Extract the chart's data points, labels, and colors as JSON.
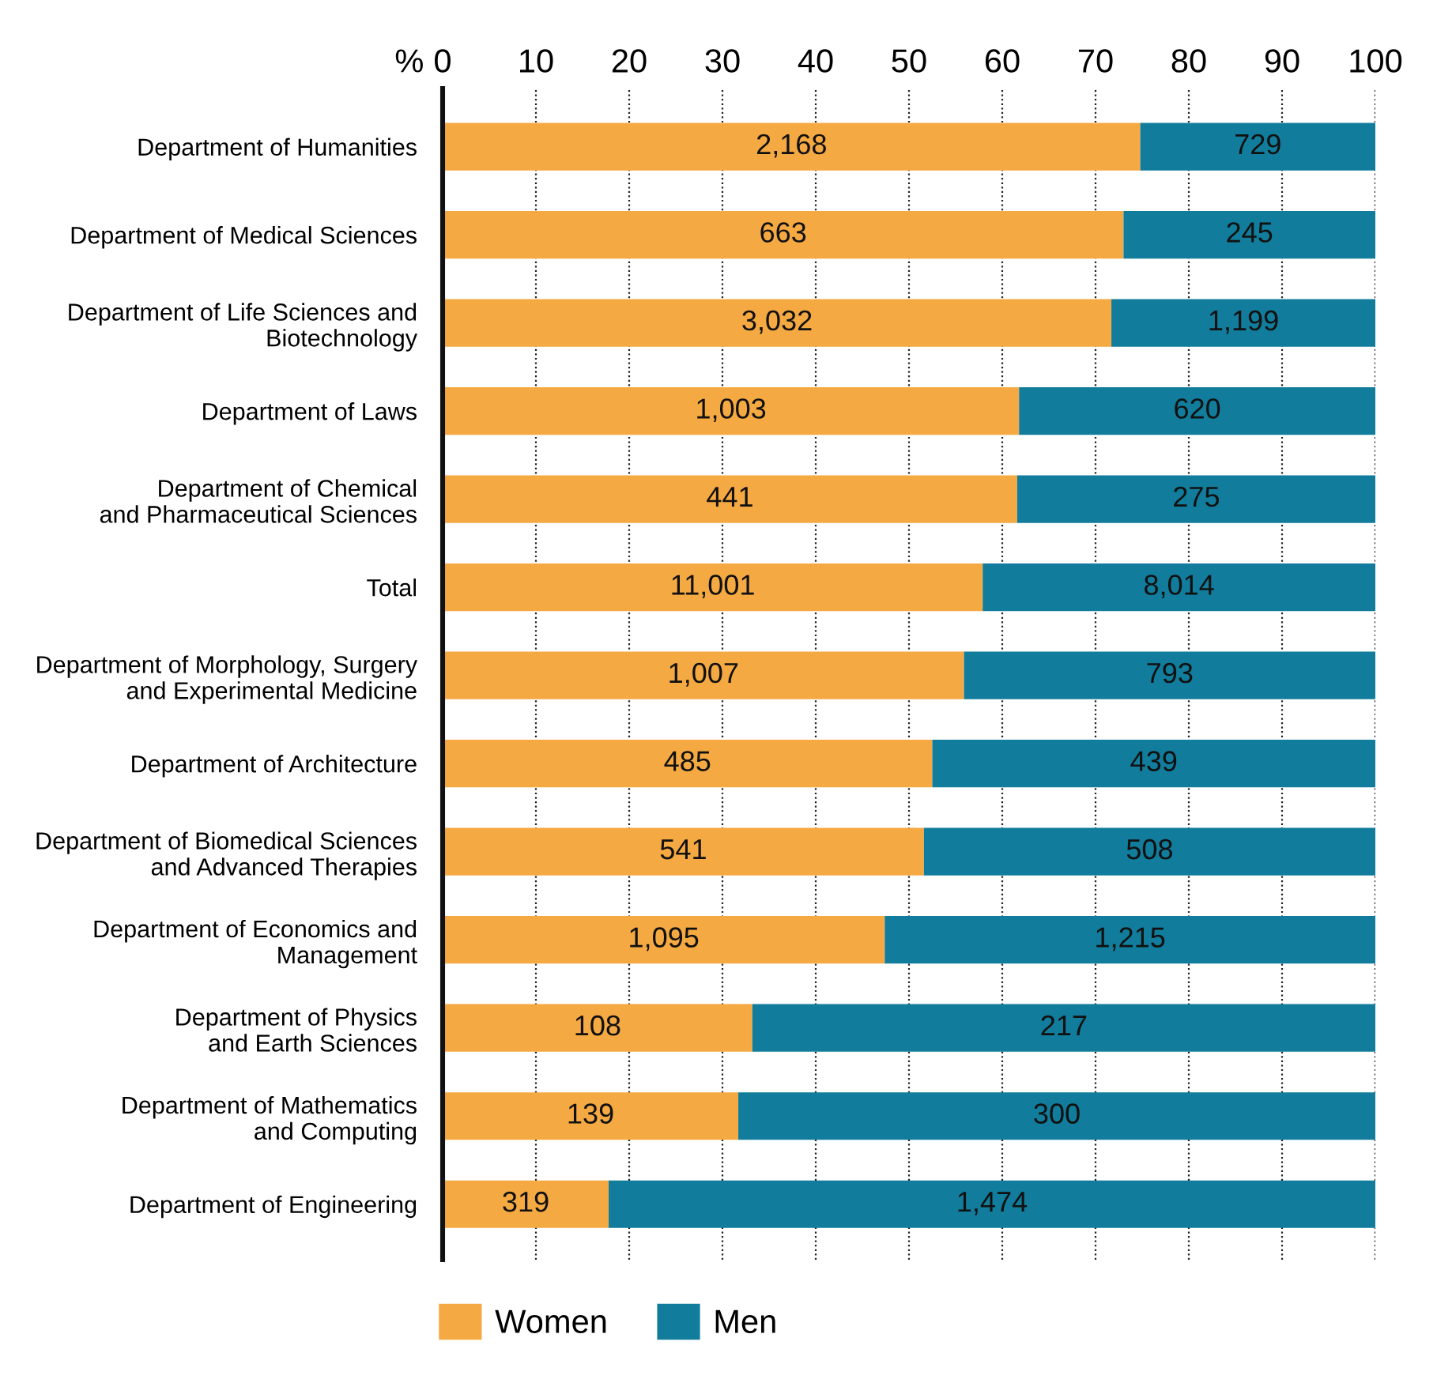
{
  "chart_data": {
    "type": "bar",
    "orientation": "horizontal",
    "stacked": true,
    "xlabel": "%",
    "categories": [
      "Department of Humanities",
      "Department of Medical Sciences",
      "Department of Life Sciences and\nBiotechnology",
      "Department of Laws",
      "Department of Chemical\nand Pharmaceutical Sciences",
      "Total",
      "Department of Morphology, Surgery\nand Experimental Medicine",
      "Department of Architecture",
      "Department of Biomedical Sciences\nand Advanced Therapies",
      "Department of Economics and\nManagement",
      "Department of Physics\nand Earth Sciences",
      "Department of Mathematics\nand Computing",
      "Department of Engineering"
    ],
    "series": [
      {
        "name": "Women",
        "color": "#f5a942",
        "values": [
          74.8,
          73.0,
          71.7,
          61.8,
          61.6,
          57.9,
          55.9,
          52.5,
          51.6,
          47.4,
          33.2,
          31.7,
          17.8
        ]
      },
      {
        "name": "Men",
        "color": "#117c9b",
        "values": [
          25.2,
          27.0,
          28.3,
          38.2,
          38.4,
          42.1,
          44.1,
          47.5,
          48.4,
          52.6,
          66.8,
          68.3,
          82.2
        ]
      }
    ],
    "annotations": [
      "2,168",
      "729",
      "663",
      "245",
      "3,032",
      "1,199",
      "1,003",
      "620",
      "441",
      "275",
      "11,001",
      "8,014",
      "1,007",
      "793",
      "485",
      "439",
      "541",
      "508",
      "1,095",
      "1,215",
      "108",
      "217",
      "139",
      "300",
      "319",
      "1,474"
    ],
    "xlim": [
      0,
      100
    ],
    "xticks": [
      0,
      10,
      20,
      30,
      40,
      50,
      60,
      70,
      80,
      90,
      100
    ],
    "grid": "x",
    "legend": "bottom"
  }
}
